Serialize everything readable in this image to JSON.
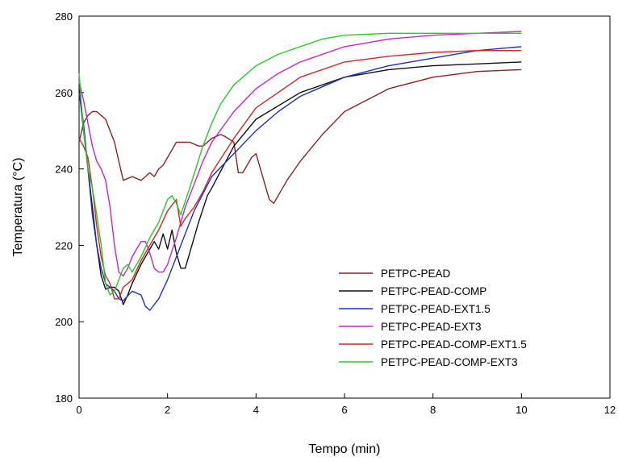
{
  "chart_data": {
    "type": "line",
    "title": "",
    "xlabel": "Tempo (min)",
    "ylabel": "Temperatura (°C)",
    "xlim": [
      0,
      12
    ],
    "ylim": [
      180,
      280
    ],
    "xticks": [
      0,
      2,
      4,
      6,
      8,
      10,
      12
    ],
    "yticks": [
      180,
      200,
      220,
      240,
      260,
      280
    ],
    "grid": false,
    "legend_position": "bottom-right",
    "series": [
      {
        "name": "PETPC-PEAD",
        "color": "#8B2323",
        "x": [
          0,
          0.1,
          0.2,
          0.3,
          0.4,
          0.5,
          0.6,
          0.7,
          0.8,
          0.9,
          1.0,
          1.2,
          1.4,
          1.5,
          1.6,
          1.7,
          1.8,
          1.9,
          2.0,
          2.1,
          2.2,
          2.3,
          2.5,
          2.7,
          2.8,
          3.0,
          3.2,
          3.3,
          3.5,
          3.6,
          3.7,
          3.8,
          3.9,
          4.0,
          4.1,
          4.2,
          4.3,
          4.4,
          4.5,
          4.7,
          5.0,
          5.5,
          6.0,
          7.0,
          8.0,
          9.0,
          10.0
        ],
        "y": [
          247,
          252,
          254,
          255,
          255,
          254,
          253,
          250,
          247,
          242,
          237,
          238,
          237,
          238,
          239,
          238,
          240,
          241,
          243,
          245,
          247,
          247,
          247,
          246,
          246,
          248,
          249,
          248.5,
          247,
          239,
          239,
          241,
          243,
          244,
          240,
          236,
          232,
          231,
          233,
          237,
          242,
          249,
          255,
          261,
          264,
          265.5,
          266
        ]
      },
      {
        "name": "PETPC-PEAD-COMP",
        "color": "#111111",
        "x": [
          0,
          0.1,
          0.2,
          0.3,
          0.4,
          0.5,
          0.6,
          0.7,
          0.8,
          0.9,
          1.0,
          1.1,
          1.2,
          1.4,
          1.6,
          1.7,
          1.8,
          1.9,
          2.0,
          2.1,
          2.2,
          2.3,
          2.4,
          2.5,
          2.7,
          2.9,
          3.0,
          3.5,
          4.0,
          5.0,
          6.0,
          7.0,
          8.0,
          9.0,
          10.0
        ],
        "y": [
          261,
          250,
          240,
          230,
          220,
          212,
          208.5,
          209,
          209,
          208,
          204.5,
          207,
          210,
          215,
          219,
          221,
          219,
          223,
          219,
          224,
          218,
          214,
          214,
          218,
          226,
          233,
          235,
          246,
          253,
          260,
          264,
          266,
          267,
          267.5,
          268
        ]
      },
      {
        "name": "PETPC-PEAD-EXT1.5",
        "color": "#1F2FC4",
        "x": [
          0,
          0.1,
          0.2,
          0.3,
          0.4,
          0.5,
          0.6,
          0.7,
          0.8,
          0.9,
          1.0,
          1.2,
          1.4,
          1.5,
          1.6,
          1.8,
          2.0,
          2.3,
          2.6,
          3.0,
          3.5,
          4.0,
          4.5,
          5.0,
          6.0,
          7.0,
          8.0,
          9.0,
          10.0
        ],
        "y": [
          260,
          252,
          240,
          228,
          220,
          214,
          210,
          209,
          208,
          206,
          205.5,
          208,
          207,
          204,
          203,
          206,
          211,
          220,
          229,
          238,
          244,
          250,
          255,
          259,
          264,
          267,
          269,
          271,
          272
        ]
      },
      {
        "name": "PETPC-PEAD-EXT3",
        "color": "#CC22CC",
        "x": [
          0,
          0.1,
          0.2,
          0.3,
          0.4,
          0.5,
          0.6,
          0.7,
          0.8,
          0.9,
          1.0,
          1.1,
          1.2,
          1.3,
          1.4,
          1.5,
          1.6,
          1.7,
          1.8,
          1.9,
          2.0,
          2.2,
          2.4,
          2.6,
          2.8,
          3.0,
          3.5,
          4.0,
          4.5,
          5.0,
          6.0,
          7.0,
          8.0,
          9.0,
          10.0
        ],
        "y": [
          263,
          258,
          252,
          246,
          242,
          240,
          237,
          230,
          220,
          213,
          212,
          214,
          217,
          219,
          221,
          221,
          218,
          214,
          213,
          213,
          215,
          222,
          230,
          236,
          242,
          247,
          255,
          261,
          265,
          268,
          272,
          274,
          275,
          275.5,
          276
        ]
      },
      {
        "name": "PETPC-PEAD-COMP-EXT1.5",
        "color": "#DD2222",
        "x": [
          0,
          0.1,
          0.2,
          0.3,
          0.4,
          0.5,
          0.6,
          0.7,
          0.8,
          0.9,
          1.0,
          1.1,
          1.2,
          1.4,
          1.6,
          1.8,
          2.0,
          2.2,
          2.3,
          2.4,
          2.6,
          2.8,
          3.0,
          3.5,
          4.0,
          5.0,
          6.0,
          7.0,
          8.0,
          9.0,
          10.0
        ],
        "y": [
          248,
          246,
          243,
          235,
          225,
          217,
          212,
          210,
          206,
          206,
          209,
          210,
          211,
          216,
          220,
          224,
          229,
          232,
          225,
          227,
          230,
          234,
          239,
          248,
          256,
          264,
          268,
          269.5,
          270.5,
          271,
          271
        ]
      },
      {
        "name": "PETPC-PEAD-COMP-EXT3",
        "color": "#22CC22",
        "x": [
          0,
          0.1,
          0.2,
          0.3,
          0.4,
          0.5,
          0.6,
          0.7,
          0.8,
          0.9,
          1.0,
          1.1,
          1.2,
          1.4,
          1.6,
          1.8,
          2.0,
          2.1,
          2.2,
          2.3,
          2.5,
          2.8,
          3.0,
          3.2,
          3.5,
          4.0,
          4.5,
          5.0,
          5.5,
          6.0,
          7.0,
          8.0,
          9.0,
          10.0
        ],
        "y": [
          265,
          250,
          240,
          235,
          228,
          220,
          210,
          207,
          208,
          211,
          214,
          215,
          213,
          217,
          222,
          226,
          232,
          233,
          231,
          228,
          235,
          246,
          252,
          257,
          262,
          267,
          270,
          272,
          274,
          275,
          275.5,
          275.5,
          275.5,
          275.5
        ]
      }
    ]
  }
}
